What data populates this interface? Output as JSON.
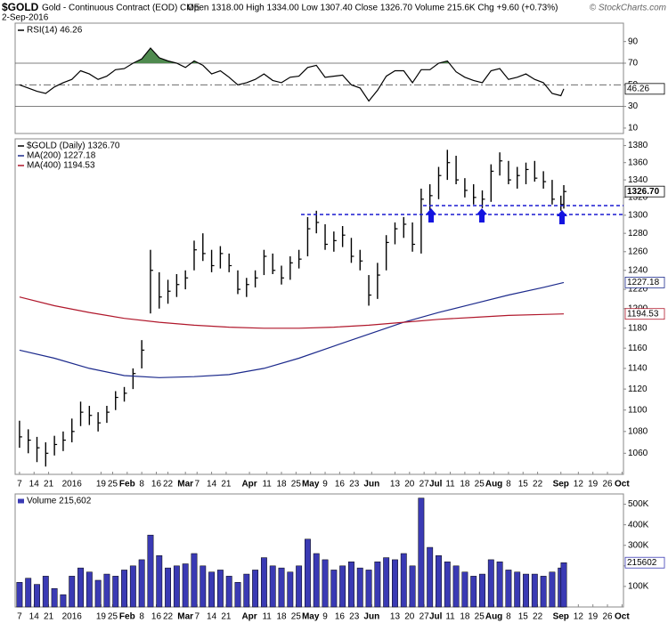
{
  "header": {
    "symbol": "$GOLD",
    "name": "Gold - Continuous Contract (EOD) CME",
    "date": "2-Sep-2016",
    "quote": "Open 1318.00 High 1334.00 Low 1307.40 Close 1326.70 Volume 215.6K Chg +9.60 (+0.73%)",
    "credit": "© StockCharts.com"
  },
  "chart_data": [
    {
      "type": "line",
      "xlim": [
        -1.5,
        207.5
      ],
      "ylim": [
        5,
        107
      ],
      "yticks": [
        10,
        30,
        50,
        70,
        90
      ],
      "levels": [
        30,
        50,
        70
      ],
      "x": [
        0,
        3,
        6,
        9,
        12,
        15,
        18,
        21,
        24,
        27,
        30,
        33,
        36,
        39,
        42,
        45,
        48,
        51,
        54,
        57,
        60,
        63,
        66,
        69,
        72,
        75,
        78,
        81,
        84,
        87,
        90,
        93,
        96,
        99,
        102,
        105,
        108,
        111,
        114,
        117,
        120,
        123,
        126,
        129,
        132,
        135,
        138,
        141,
        144,
        147,
        150,
        153,
        156,
        159,
        162,
        165,
        168,
        171,
        174,
        177,
        180,
        183,
        186,
        187
      ],
      "series": [
        {
          "name": "RSI(14) 46.26",
          "type": "line",
          "color": "#000000",
          "fill_color": "#4f8a4f",
          "values": [
            50,
            47,
            44,
            42,
            48,
            52,
            55,
            63,
            60,
            55,
            58,
            64,
            65,
            70,
            74,
            84,
            75,
            72,
            70,
            66,
            72,
            68,
            60,
            63,
            57,
            50,
            52,
            55,
            60,
            54,
            52,
            57,
            58,
            66,
            68,
            57,
            58,
            59,
            50,
            47,
            35,
            45,
            58,
            63,
            63,
            52,
            64,
            64,
            70,
            72,
            62,
            57,
            54,
            52,
            63,
            65,
            55,
            57,
            60,
            55,
            52,
            42,
            40,
            46.26
          ]
        }
      ]
    },
    {
      "type": "ohlc",
      "log": true,
      "xlim": [
        -1.5,
        207.5
      ],
      "ylim": [
        1041,
        1388
      ],
      "yticks": [
        1060,
        1080,
        1100,
        1120,
        1140,
        1160,
        1180,
        1200,
        1220,
        1240,
        1260,
        1280,
        1300,
        1320,
        1340,
        1360,
        1380
      ],
      "xticks": [
        {
          "value": 0,
          "label": "7"
        },
        {
          "value": 5,
          "label": "14"
        },
        {
          "value": 10,
          "label": "21"
        },
        {
          "value": 18,
          "label": "2016"
        },
        {
          "value": 28,
          "label": "19"
        },
        {
          "value": 32,
          "label": "25"
        },
        {
          "value": 37,
          "label": "Feb"
        },
        {
          "value": 42,
          "label": "8"
        },
        {
          "value": 47,
          "label": "16"
        },
        {
          "value": 51,
          "label": "22"
        },
        {
          "value": 57,
          "label": "Mar"
        },
        {
          "value": 61,
          "label": "7"
        },
        {
          "value": 66,
          "label": "14"
        },
        {
          "value": 71,
          "label": "21"
        },
        {
          "value": 79,
          "label": "Apr"
        },
        {
          "value": 85,
          "label": "11"
        },
        {
          "value": 90,
          "label": "18"
        },
        {
          "value": 95,
          "label": "25"
        },
        {
          "value": 100,
          "label": "May"
        },
        {
          "value": 105,
          "label": "9"
        },
        {
          "value": 110,
          "label": "16"
        },
        {
          "value": 115,
          "label": "23"
        },
        {
          "value": 121,
          "label": "Jun"
        },
        {
          "value": 129,
          "label": "13"
        },
        {
          "value": 134,
          "label": "20"
        },
        {
          "value": 139,
          "label": "27"
        },
        {
          "value": 143,
          "label": "Jul"
        },
        {
          "value": 148,
          "label": "11"
        },
        {
          "value": 153,
          "label": "18"
        },
        {
          "value": 158,
          "label": "25"
        },
        {
          "value": 163,
          "label": "Aug"
        },
        {
          "value": 168,
          "label": "8"
        },
        {
          "value": 173,
          "label": "15"
        },
        {
          "value": 178,
          "label": "22"
        },
        {
          "value": 186,
          "label": "Sep"
        },
        {
          "value": 192,
          "label": "12"
        },
        {
          "value": 197,
          "label": "19"
        },
        {
          "value": 202,
          "label": "26"
        },
        {
          "value": 207,
          "label": "Oct"
        }
      ],
      "x": [
        0,
        3,
        6,
        9,
        12,
        15,
        18,
        21,
        24,
        27,
        30,
        33,
        36,
        39,
        42,
        45,
        48,
        51,
        54,
        57,
        60,
        63,
        66,
        69,
        72,
        75,
        78,
        81,
        84,
        87,
        90,
        93,
        96,
        99,
        102,
        105,
        108,
        111,
        114,
        117,
        120,
        123,
        126,
        129,
        132,
        135,
        138,
        141,
        144,
        147,
        150,
        153,
        156,
        159,
        162,
        165,
        168,
        171,
        174,
        177,
        180,
        183,
        186,
        187
      ],
      "series": [
        {
          "name": "$GOLD (Daily) 1326.70",
          "type": "ohlc",
          "color": "#000000",
          "last_label": "1326.70",
          "high": [
            1090,
            1082,
            1075,
            1070,
            1076,
            1080,
            1092,
            1108,
            1104,
            1098,
            1104,
            1118,
            1122,
            1140,
            1168,
            1262,
            1238,
            1230,
            1236,
            1240,
            1272,
            1280,
            1262,
            1266,
            1258,
            1240,
            1232,
            1240,
            1262,
            1258,
            1245,
            1255,
            1262,
            1298,
            1305,
            1290,
            1282,
            1288,
            1275,
            1262,
            1235,
            1248,
            1278,
            1292,
            1298,
            1292,
            1330,
            1335,
            1355,
            1375,
            1368,
            1342,
            1335,
            1328,
            1358,
            1372,
            1362,
            1355,
            1360,
            1362,
            1350,
            1340,
            1322,
            1334
          ],
          "low": [
            1065,
            1060,
            1052,
            1048,
            1058,
            1062,
            1070,
            1085,
            1086,
            1080,
            1088,
            1100,
            1108,
            1120,
            1140,
            1195,
            1200,
            1205,
            1212,
            1220,
            1240,
            1250,
            1238,
            1242,
            1238,
            1215,
            1212,
            1222,
            1235,
            1236,
            1225,
            1230,
            1242,
            1255,
            1280,
            1262,
            1260,
            1265,
            1248,
            1240,
            1203,
            1210,
            1240,
            1268,
            1275,
            1260,
            1258,
            1305,
            1318,
            1340,
            1335,
            1320,
            1312,
            1308,
            1315,
            1345,
            1335,
            1330,
            1335,
            1338,
            1330,
            1312,
            1305,
            1307.4
          ],
          "close": [
            1075,
            1072,
            1065,
            1060,
            1068,
            1072,
            1080,
            1098,
            1095,
            1088,
            1098,
            1112,
            1116,
            1135,
            1158,
            1240,
            1212,
            1218,
            1225,
            1232,
            1262,
            1258,
            1245,
            1258,
            1245,
            1220,
            1225,
            1232,
            1255,
            1240,
            1232,
            1248,
            1252,
            1285,
            1292,
            1268,
            1272,
            1278,
            1255,
            1250,
            1214,
            1235,
            1270,
            1285,
            1290,
            1268,
            1318,
            1322,
            1345,
            1360,
            1340,
            1328,
            1320,
            1318,
            1350,
            1362,
            1340,
            1345,
            1352,
            1342,
            1338,
            1318,
            1312,
            1326.7
          ]
        },
        {
          "name": "MA(200) 1227.18",
          "type": "line",
          "color": "#1c2a8c",
          "last_label": "1227.18",
          "x": [
            0,
            12,
            24,
            36,
            48,
            60,
            72,
            84,
            96,
            108,
            120,
            132,
            144,
            156,
            168,
            180,
            187
          ],
          "values": [
            1158,
            1150,
            1140,
            1133,
            1131,
            1132,
            1134,
            1140,
            1150,
            1162,
            1174,
            1186,
            1196,
            1205,
            1214,
            1222,
            1227.18
          ]
        },
        {
          "name": "MA(400) 1194.53",
          "type": "line",
          "color": "#b0172b",
          "last_label": "1194.53",
          "x": [
            0,
            12,
            24,
            36,
            48,
            60,
            72,
            84,
            96,
            108,
            120,
            132,
            144,
            156,
            168,
            180,
            187
          ],
          "values": [
            1212,
            1203,
            1196,
            1190,
            1186,
            1183,
            1181,
            1180,
            1180,
            1181,
            1183,
            1186,
            1189,
            1191,
            1193,
            1194,
            1194.53
          ]
        }
      ]
    },
    {
      "type": "bar",
      "xlim": [
        -1.5,
        207.5
      ],
      "ylim": [
        0,
        550000
      ],
      "yticks": [
        {
          "value": 100000,
          "label": "100K"
        },
        {
          "value": 200000,
          "label": "200K"
        },
        {
          "value": 300000,
          "label": "300K"
        },
        {
          "value": 400000,
          "label": "400K"
        },
        {
          "value": 500000,
          "label": "500K"
        }
      ],
      "xticks": [
        {
          "value": 0,
          "label": "7"
        },
        {
          "value": 5,
          "label": "14"
        },
        {
          "value": 10,
          "label": "21"
        },
        {
          "value": 18,
          "label": "2016"
        },
        {
          "value": 28,
          "label": "19"
        },
        {
          "value": 32,
          "label": "25"
        },
        {
          "value": 37,
          "label": "Feb"
        },
        {
          "value": 42,
          "label": "8"
        },
        {
          "value": 47,
          "label": "16"
        },
        {
          "value": 51,
          "label": "22"
        },
        {
          "value": 57,
          "label": "Mar"
        },
        {
          "value": 61,
          "label": "7"
        },
        {
          "value": 66,
          "label": "14"
        },
        {
          "value": 71,
          "label": "21"
        },
        {
          "value": 79,
          "label": "Apr"
        },
        {
          "value": 85,
          "label": "11"
        },
        {
          "value": 90,
          "label": "18"
        },
        {
          "value": 95,
          "label": "25"
        },
        {
          "value": 100,
          "label": "May"
        },
        {
          "value": 105,
          "label": "9"
        },
        {
          "value": 110,
          "label": "16"
        },
        {
          "value": 115,
          "label": "23"
        },
        {
          "value": 121,
          "label": "Jun"
        },
        {
          "value": 129,
          "label": "13"
        },
        {
          "value": 134,
          "label": "20"
        },
        {
          "value": 139,
          "label": "27"
        },
        {
          "value": 143,
          "label": "Jul"
        },
        {
          "value": 148,
          "label": "11"
        },
        {
          "value": 153,
          "label": "18"
        },
        {
          "value": 158,
          "label": "25"
        },
        {
          "value": 163,
          "label": "Aug"
        },
        {
          "value": 168,
          "label": "8"
        },
        {
          "value": 173,
          "label": "15"
        },
        {
          "value": 178,
          "label": "22"
        },
        {
          "value": 186,
          "label": "Sep"
        },
        {
          "value": 192,
          "label": "12"
        },
        {
          "value": 197,
          "label": "19"
        },
        {
          "value": 202,
          "label": "26"
        },
        {
          "value": 207,
          "label": "Oct"
        }
      ],
      "x": [
        0,
        3,
        6,
        9,
        12,
        15,
        18,
        21,
        24,
        27,
        30,
        33,
        36,
        39,
        42,
        45,
        48,
        51,
        54,
        57,
        60,
        63,
        66,
        69,
        72,
        75,
        78,
        81,
        84,
        87,
        90,
        93,
        96,
        99,
        102,
        105,
        108,
        111,
        114,
        117,
        120,
        123,
        126,
        129,
        132,
        135,
        138,
        141,
        144,
        147,
        150,
        153,
        156,
        159,
        162,
        165,
        168,
        171,
        174,
        177,
        180,
        183,
        186,
        187
      ],
      "series": [
        {
          "name": "Volume 215,602",
          "type": "bar",
          "color": "#3a3ab4",
          "values": [
            120000,
            140000,
            110000,
            150000,
            90000,
            60000,
            150000,
            190000,
            170000,
            130000,
            160000,
            150000,
            180000,
            200000,
            230000,
            350000,
            250000,
            190000,
            200000,
            210000,
            260000,
            200000,
            170000,
            180000,
            150000,
            120000,
            160000,
            180000,
            240000,
            200000,
            190000,
            170000,
            200000,
            330000,
            260000,
            230000,
            180000,
            200000,
            220000,
            190000,
            180000,
            220000,
            240000,
            230000,
            260000,
            200000,
            530000,
            290000,
            250000,
            220000,
            200000,
            170000,
            150000,
            160000,
            230000,
            220000,
            180000,
            170000,
            160000,
            160000,
            150000,
            170000,
            190000,
            215602
          ]
        }
      ]
    }
  ]
}
